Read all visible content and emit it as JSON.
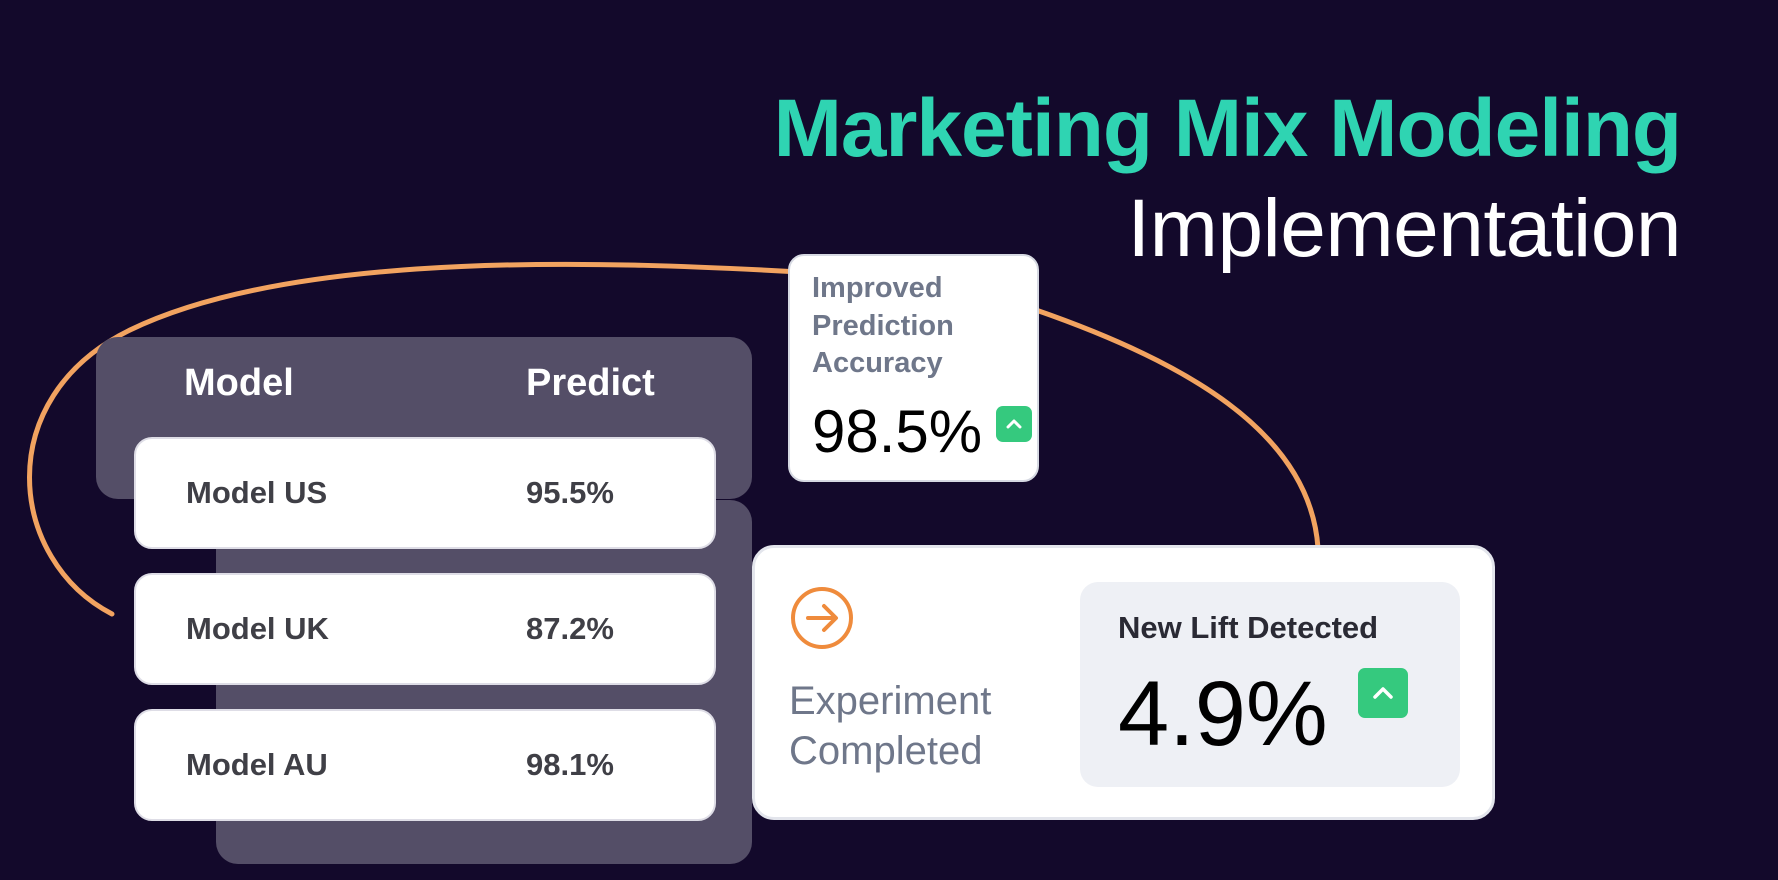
{
  "title": {
    "line1": "Marketing Mix Modeling",
    "line2": "Implementation"
  },
  "colors": {
    "background": "#13092b",
    "accent_teal": "#2fd4b2",
    "arc_orange": "#f2a360",
    "panel": "#544e67",
    "badge_green": "#35c97e"
  },
  "table": {
    "headers": {
      "model": "Model",
      "predict": "Predict"
    },
    "rows": [
      {
        "model": "Model US",
        "predict": "95.5%"
      },
      {
        "model": "Model UK",
        "predict": "87.2%"
      },
      {
        "model": "Model AU",
        "predict": "98.1%"
      }
    ]
  },
  "accuracy_card": {
    "label": "Improved Prediction Accuracy",
    "value": "98.5%",
    "trend_icon": "chevron-up-icon"
  },
  "experiment_card": {
    "icon": "arrow-right-circle-icon",
    "label_line1": "Experiment",
    "label_line2": "Completed",
    "lift_title": "New Lift Detected",
    "lift_value": "4.9%",
    "trend_icon": "chevron-up-icon"
  }
}
